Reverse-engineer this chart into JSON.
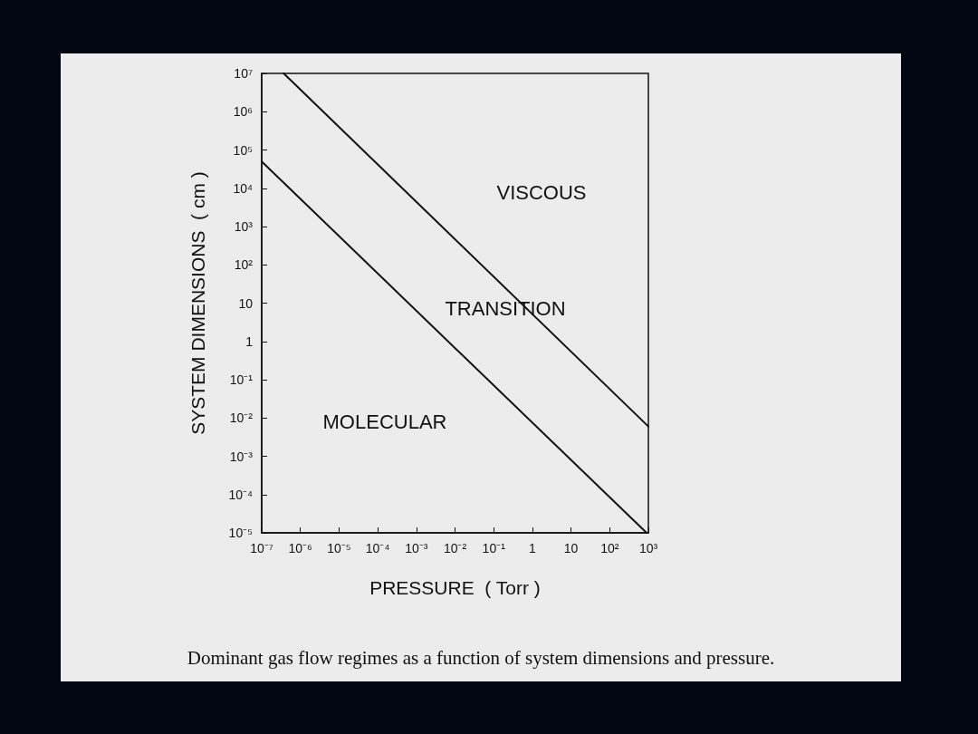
{
  "chart_data": {
    "type": "line",
    "xlabel": "PRESSURE  ( Torr )",
    "ylabel": "SYSTEM DIMENSIONS  ( cm )",
    "series": [
      {
        "color": "#111111",
        "x": [
          3.7e-07,
          1000
        ],
        "values": [
          10000000,
          0.006
        ]
      },
      {
        "color": "#111111",
        "x": [
          1e-07,
          900
        ],
        "values": [
          50000,
          1e-05
        ]
      }
    ],
    "log": "xy",
    "xlim": [
      1e-07,
      1000
    ],
    "ylim": [
      1e-05,
      10000000
    ],
    "xticks": [
      {
        "value": 1e-07,
        "label": "10⁻⁷"
      },
      {
        "value": 1e-06,
        "label": "10⁻⁶"
      },
      {
        "value": 1e-05,
        "label": "10⁻⁵"
      },
      {
        "value": 0.0001,
        "label": "10⁻⁴"
      },
      {
        "value": 0.001,
        "label": "10⁻³"
      },
      {
        "value": 0.01,
        "label": "10⁻²"
      },
      {
        "value": 0.1,
        "label": "10⁻¹"
      },
      1,
      10,
      {
        "value": 100,
        "label": "10²"
      },
      {
        "value": 1000,
        "label": "10³"
      }
    ],
    "yticks": [
      {
        "value": 1e-05,
        "label": "10⁻⁵"
      },
      {
        "value": 0.0001,
        "label": "10⁻⁴"
      },
      {
        "value": 0.001,
        "label": "10⁻³"
      },
      {
        "value": 0.01,
        "label": "10⁻²"
      },
      {
        "value": 0.1,
        "label": "10⁻¹"
      },
      1,
      10,
      {
        "value": 100,
        "label": "10²"
      },
      {
        "value": 1000,
        "label": "10³"
      },
      {
        "value": 10000,
        "label": "10⁴"
      },
      {
        "value": 100000,
        "label": "10⁵"
      },
      {
        "value": 1000000,
        "label": "10⁶"
      },
      {
        "value": 10000000,
        "label": "10⁷"
      }
    ],
    "grid": false,
    "marker": "none",
    "line_style": "solid",
    "annotations": [
      "VISCOUS",
      "TRANSITION",
      "MOLECULAR",
      "Dominant gas flow regimes as a function of system dimensions and pressure."
    ]
  }
}
